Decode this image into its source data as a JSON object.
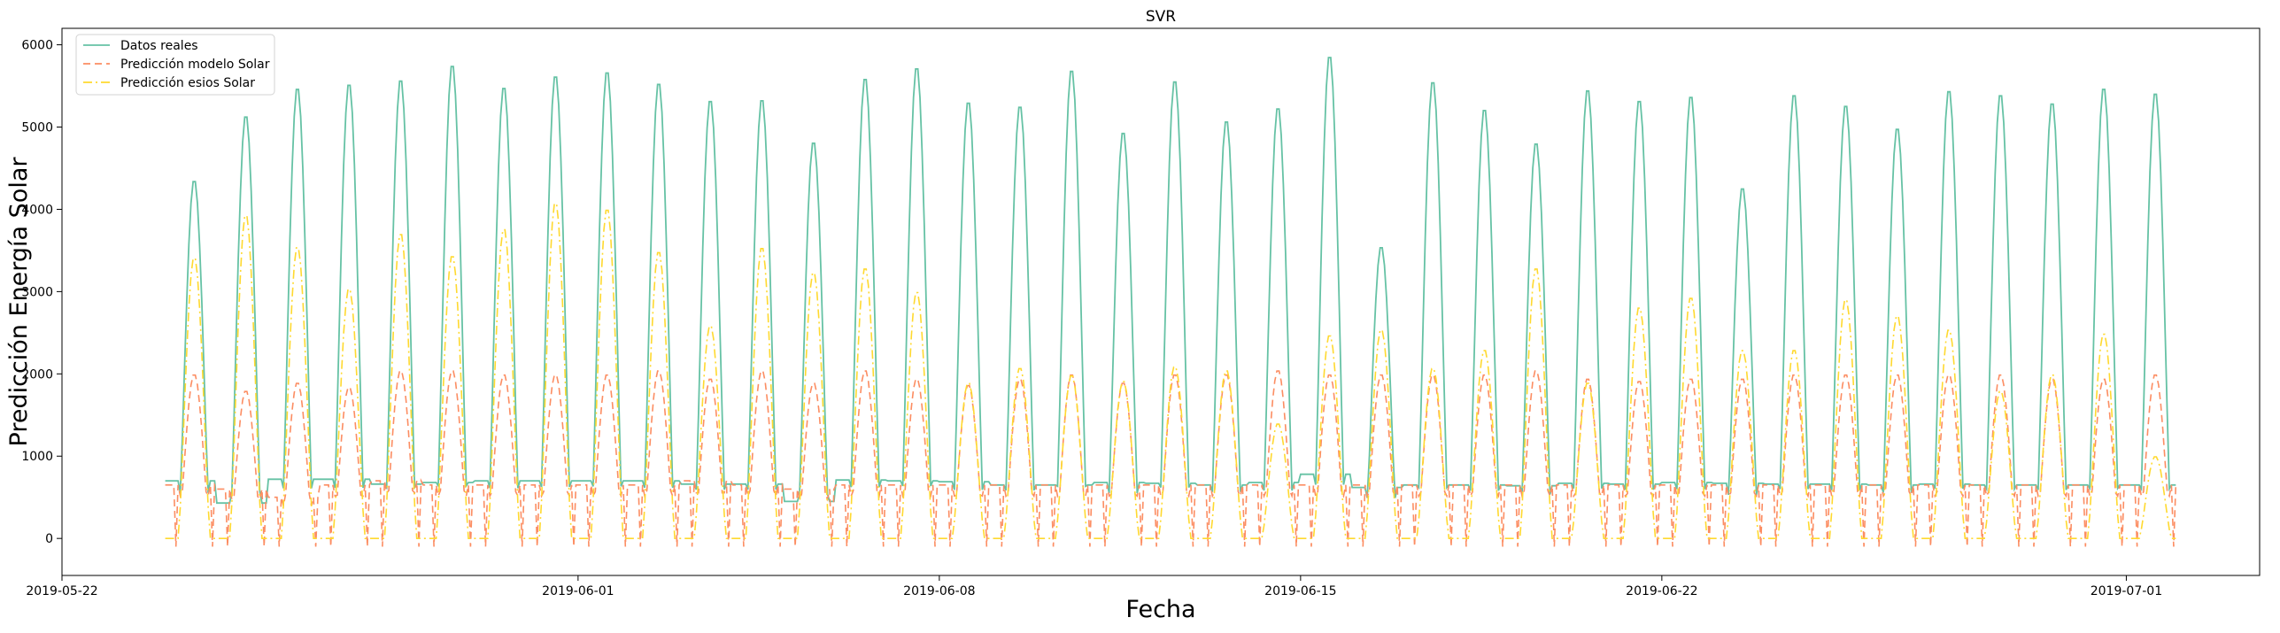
{
  "chart_data": {
    "type": "line",
    "title": "SVR",
    "xlabel": "Fecha",
    "ylabel": "Predicción Energía Solar",
    "x_range": [
      "2019-05-22",
      "2019-07-03T14:00"
    ],
    "ylim": [
      -450,
      6200
    ],
    "x_ticks": [
      "2019-05-22",
      "2019-06-01",
      "2019-06-08",
      "2019-06-15",
      "2019-06-22",
      "2019-07-01"
    ],
    "y_ticks": [
      0,
      1000,
      2000,
      3000,
      4000,
      5000,
      6000
    ],
    "y_tick_labels": [
      "0",
      "1000",
      "2000",
      "3000",
      "4000",
      "5000",
      "6000"
    ],
    "x_start": "2019-05-24T00:00",
    "sampling": "hourly",
    "legend": {
      "position": "top-left"
    },
    "grid": false,
    "series": [
      {
        "name": "Datos reales",
        "color": "#66c2a5",
        "style": "solid",
        "daily_peaks": [
          4370,
          5160,
          5500,
          5550,
          5600,
          5780,
          5510,
          5650,
          5700,
          5560,
          5350,
          5360,
          4840,
          5620,
          5750,
          5330,
          5280,
          5720,
          4960,
          5590,
          5100,
          5260,
          5890,
          3560,
          5580,
          5240,
          4830,
          5480,
          5350,
          5400,
          4280,
          5420,
          5290,
          5010,
          5470,
          5420,
          5320,
          5500,
          5440
        ],
        "night_levels": [
          700,
          430,
          720,
          720,
          660,
          680,
          700,
          700,
          700,
          700,
          660,
          660,
          450,
          710,
          700,
          690,
          650,
          650,
          680,
          670,
          650,
          680,
          780,
          620,
          650,
          650,
          640,
          670,
          660,
          680,
          670,
          660,
          660,
          650,
          660,
          650,
          650,
          650,
          650
        ]
      },
      {
        "name": "Predicción modelo Solar",
        "color": "#fc8d62",
        "style": "dashed",
        "daily_peaks": [
          2000,
          1800,
          1900,
          1850,
          2050,
          2050,
          2000,
          2000,
          2000,
          2050,
          1950,
          2050,
          1900,
          2050,
          1950,
          1870,
          1950,
          2000,
          1900,
          2000,
          2000,
          2050,
          2000,
          2000,
          2000,
          2000,
          2050,
          1950,
          1920,
          1950,
          1950,
          2000,
          2000,
          2000,
          2000,
          2000,
          1950,
          1950,
          2000
        ],
        "night_levels": [
          650,
          600,
          500,
          650,
          700,
          650,
          650,
          650,
          650,
          650,
          700,
          650,
          600,
          650,
          650,
          650,
          650,
          650,
          650,
          650,
          650,
          650,
          650,
          650,
          650,
          650,
          650,
          650,
          650,
          650,
          650,
          650,
          650,
          650,
          650,
          650,
          650,
          650,
          650
        ]
      },
      {
        "name": "Predicción esios Solar",
        "color": "#ffd92f",
        "style": "dashdot",
        "daily_peaks": [
          3430,
          3950,
          3560,
          3050,
          3720,
          3450,
          3780,
          4100,
          4020,
          3500,
          2600,
          3550,
          3250,
          3300,
          3010,
          1900,
          2080,
          1990,
          1920,
          2100,
          2050,
          1400,
          2480,
          2550,
          2080,
          2300,
          3300,
          1900,
          2820,
          2940,
          2300,
          2300,
          2920,
          2720,
          2550,
          1800,
          2000,
          2500,
          1000
        ],
        "night_levels": [
          0,
          0,
          0,
          0,
          0,
          0,
          0,
          0,
          0,
          0,
          0,
          0,
          0,
          0,
          0,
          0,
          0,
          0,
          0,
          0,
          0,
          0,
          0,
          0,
          0,
          0,
          0,
          0,
          0,
          0,
          0,
          0,
          0,
          0,
          0,
          0,
          0,
          0,
          0
        ]
      }
    ]
  }
}
